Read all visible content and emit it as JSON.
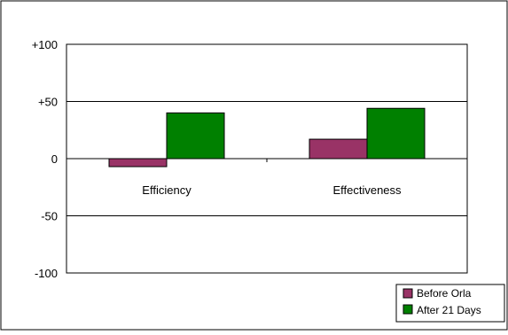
{
  "chart_data": {
    "type": "bar",
    "categories": [
      "Efficiency",
      "Effectiveness"
    ],
    "series": [
      {
        "name": "Before Orla",
        "values": [
          -7,
          17
        ],
        "color": "#993366"
      },
      {
        "name": "After 21 Days",
        "values": [
          40,
          44
        ],
        "color": "#008000"
      }
    ],
    "ylim": [
      -100,
      100
    ],
    "yticks": [
      {
        "value": 100,
        "label": "+100"
      },
      {
        "value": 50,
        "label": "+50"
      },
      {
        "value": 0,
        "label": "0"
      },
      {
        "value": -50,
        "label": "-50"
      },
      {
        "value": -100,
        "label": "-100"
      }
    ],
    "grid": true,
    "legend_position": "bottom-right",
    "title": "",
    "xlabel": "",
    "ylabel": ""
  }
}
